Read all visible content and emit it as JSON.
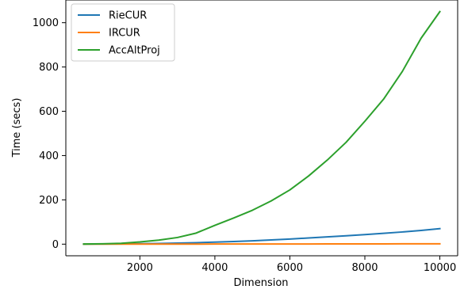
{
  "chart_data": {
    "type": "line",
    "title": "",
    "xlabel": "Dimension",
    "ylabel": "Time (secs)",
    "xlim": [
      25,
      10475
    ],
    "ylim": [
      -52.5,
      1102.5
    ],
    "xticks": [
      2000,
      4000,
      6000,
      8000,
      10000
    ],
    "yticks": [
      0,
      200,
      400,
      600,
      800,
      1000
    ],
    "grid": false,
    "legend_position": "top-left",
    "x": [
      500,
      1000,
      1500,
      2000,
      2500,
      3000,
      3500,
      4000,
      4500,
      5000,
      5500,
      6000,
      6500,
      7000,
      7500,
      8000,
      8500,
      9000,
      9500,
      10000
    ],
    "series": [
      {
        "name": "RieCUR",
        "color": "#1f77b4",
        "values": [
          0.2,
          0.6,
          1.2,
          2.0,
          3.0,
          4.5,
          6.5,
          9,
          12,
          15,
          19,
          23,
          28,
          33,
          38,
          43,
          49,
          55,
          62,
          70
        ]
      },
      {
        "name": "IRCUR",
        "color": "#ff7f0e",
        "values": [
          0.1,
          0.1,
          0.2,
          0.2,
          0.3,
          0.3,
          0.4,
          0.5,
          0.5,
          0.6,
          0.7,
          0.8,
          0.9,
          1.0,
          1.1,
          1.2,
          1.3,
          1.4,
          1.5,
          1.6
        ]
      },
      {
        "name": "AccAltProj",
        "color": "#2ca02c",
        "values": [
          0.5,
          1.5,
          4,
          10,
          18,
          30,
          50,
          85,
          118,
          153,
          195,
          245,
          308,
          380,
          460,
          555,
          655,
          780,
          930,
          1050
        ]
      }
    ]
  }
}
